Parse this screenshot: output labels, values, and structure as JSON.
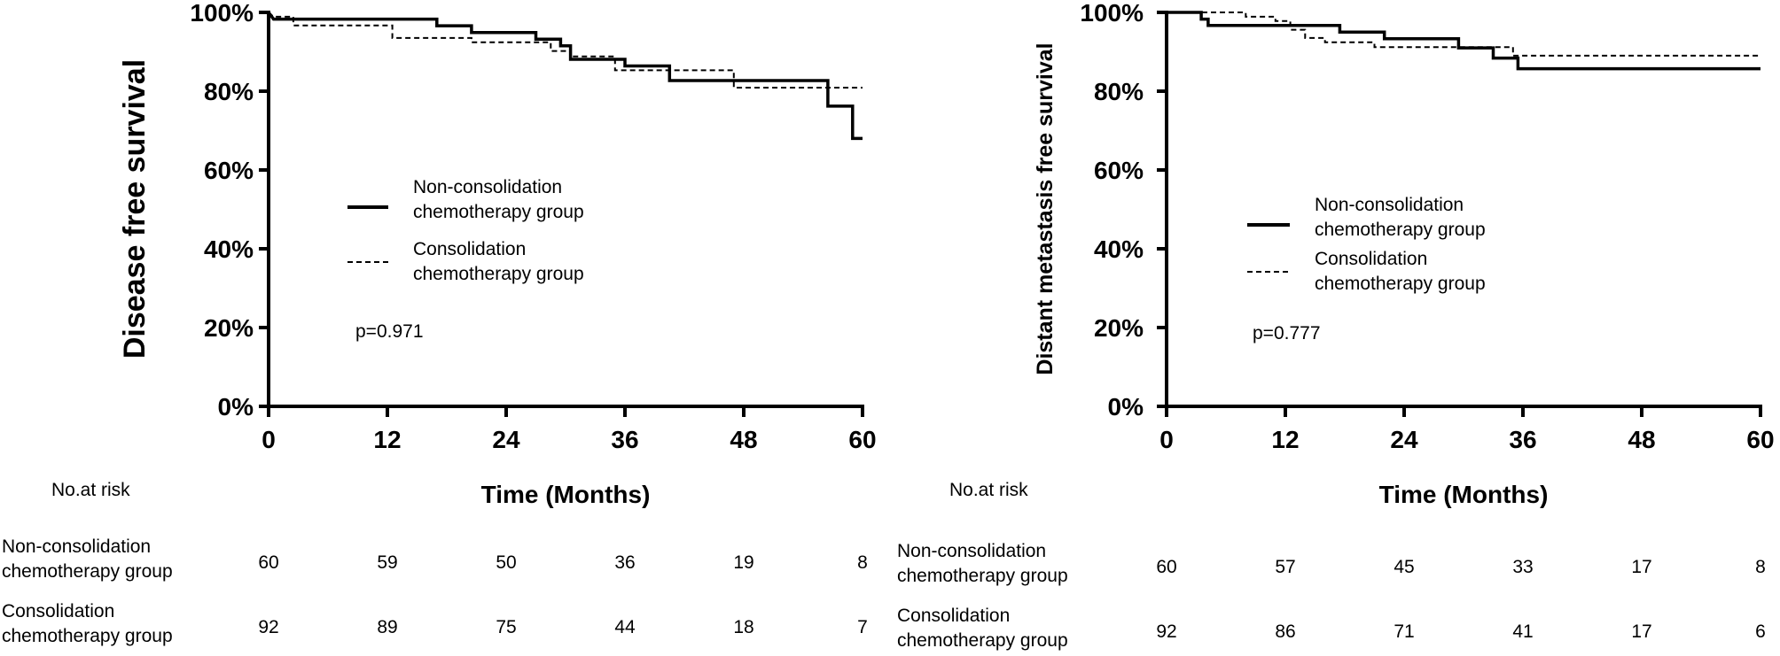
{
  "chart_data": [
    {
      "type": "line",
      "title": "",
      "xlabel": "Time (Months)",
      "ylabel": "Disease free survival",
      "xlim": [
        0,
        60
      ],
      "ylim": [
        0,
        100
      ],
      "xticks": [
        0,
        12,
        24,
        36,
        48,
        60
      ],
      "yticks": [
        "0%",
        "20%",
        "40%",
        "60%",
        "80%",
        "100%"
      ],
      "p_value": "p=0.971",
      "series": [
        {
          "name": "Non-consolidation chemotherapy group",
          "style": "solid",
          "points": [
            [
              0,
              100
            ],
            [
              0.5,
              98.3
            ],
            [
              17,
              98.3
            ],
            [
              17,
              96.6
            ],
            [
              20.5,
              96.6
            ],
            [
              20.5,
              94.9
            ],
            [
              27,
              94.9
            ],
            [
              27,
              93.2
            ],
            [
              29.5,
              93.2
            ],
            [
              29.5,
              91.5
            ],
            [
              30.5,
              91.5
            ],
            [
              30.5,
              88.1
            ],
            [
              36,
              88.1
            ],
            [
              36,
              86.4
            ],
            [
              40.5,
              86.4
            ],
            [
              40.5,
              82.7
            ],
            [
              56.5,
              82.7
            ],
            [
              56.5,
              76.2
            ],
            [
              59,
              76.2
            ],
            [
              59,
              68
            ],
            [
              60,
              68
            ]
          ]
        },
        {
          "name": "Consolidation chemotherapy group",
          "style": "dashed",
          "points": [
            [
              0,
              100
            ],
            [
              0.5,
              98.9
            ],
            [
              2.5,
              98.9
            ],
            [
              2.5,
              96.7
            ],
            [
              12.5,
              96.7
            ],
            [
              12.5,
              93.5
            ],
            [
              20.5,
              93.5
            ],
            [
              20.5,
              92.4
            ],
            [
              28.5,
              92.4
            ],
            [
              28.5,
              90.2
            ],
            [
              30.5,
              90.2
            ],
            [
              30.5,
              88.8
            ],
            [
              35,
              88.8
            ],
            [
              35,
              85.3
            ],
            [
              47,
              85.3
            ],
            [
              47,
              80.9
            ],
            [
              60,
              80.9
            ]
          ]
        }
      ],
      "risk_table": {
        "header": "No.at risk",
        "rows": [
          {
            "label_line1": "Non-consolidation",
            "label_line2": "chemotherapy group",
            "values": [
              "60",
              "59",
              "50",
              "36",
              "19",
              "8"
            ]
          },
          {
            "label_line1": "Consolidation",
            "label_line2": "chemotherapy group",
            "values": [
              "92",
              "89",
              "75",
              "44",
              "18",
              "7"
            ]
          }
        ]
      }
    },
    {
      "type": "line",
      "title": "",
      "xlabel": "Time (Months)",
      "ylabel": "Distant metastasis free survival",
      "xlim": [
        0,
        60
      ],
      "ylim": [
        0,
        100
      ],
      "xticks": [
        0,
        12,
        24,
        36,
        48,
        60
      ],
      "yticks": [
        "0%",
        "20%",
        "40%",
        "60%",
        "80%",
        "100%"
      ],
      "p_value": "p=0.777",
      "series": [
        {
          "name": "Non-consolidation chemotherapy group",
          "style": "solid",
          "points": [
            [
              0,
              100
            ],
            [
              3.5,
              100
            ],
            [
              3.5,
              98.3
            ],
            [
              4.2,
              98.3
            ],
            [
              4.2,
              96.7
            ],
            [
              17.5,
              96.7
            ],
            [
              17.5,
              95
            ],
            [
              22,
              95
            ],
            [
              22,
              93.3
            ],
            [
              29.5,
              93.3
            ],
            [
              29.5,
              91
            ],
            [
              33,
              91
            ],
            [
              33,
              88.4
            ],
            [
              35.5,
              88.4
            ],
            [
              35.5,
              85.7
            ],
            [
              60,
              85.7
            ]
          ]
        },
        {
          "name": "Consolidation chemotherapy group",
          "style": "dashed",
          "points": [
            [
              0,
              100
            ],
            [
              8,
              100
            ],
            [
              8,
              98.9
            ],
            [
              11,
              98.9
            ],
            [
              11,
              97.8
            ],
            [
              12.5,
              97.8
            ],
            [
              12.5,
              95.6
            ],
            [
              14,
              95.6
            ],
            [
              14,
              93.5
            ],
            [
              16,
              93.5
            ],
            [
              16,
              92.4
            ],
            [
              21,
              92.4
            ],
            [
              21,
              91.2
            ],
            [
              35,
              91.2
            ],
            [
              35,
              89
            ],
            [
              60,
              89
            ]
          ]
        }
      ],
      "risk_table": {
        "header": "No.at risk",
        "rows": [
          {
            "label_line1": "Non-consolidation",
            "label_line2": "chemotherapy group",
            "values": [
              "60",
              "57",
              "45",
              "33",
              "17",
              "8"
            ]
          },
          {
            "label_line1": "Consolidation",
            "label_line2": "chemotherapy group",
            "values": [
              "92",
              "86",
              "71",
              "41",
              "17",
              "6"
            ]
          }
        ]
      }
    }
  ],
  "legend": {
    "solid_line1": "Non-consolidation",
    "solid_line2": "chemotherapy group",
    "dashed_line1": "Consolidation",
    "dashed_line2": "chemotherapy group"
  }
}
